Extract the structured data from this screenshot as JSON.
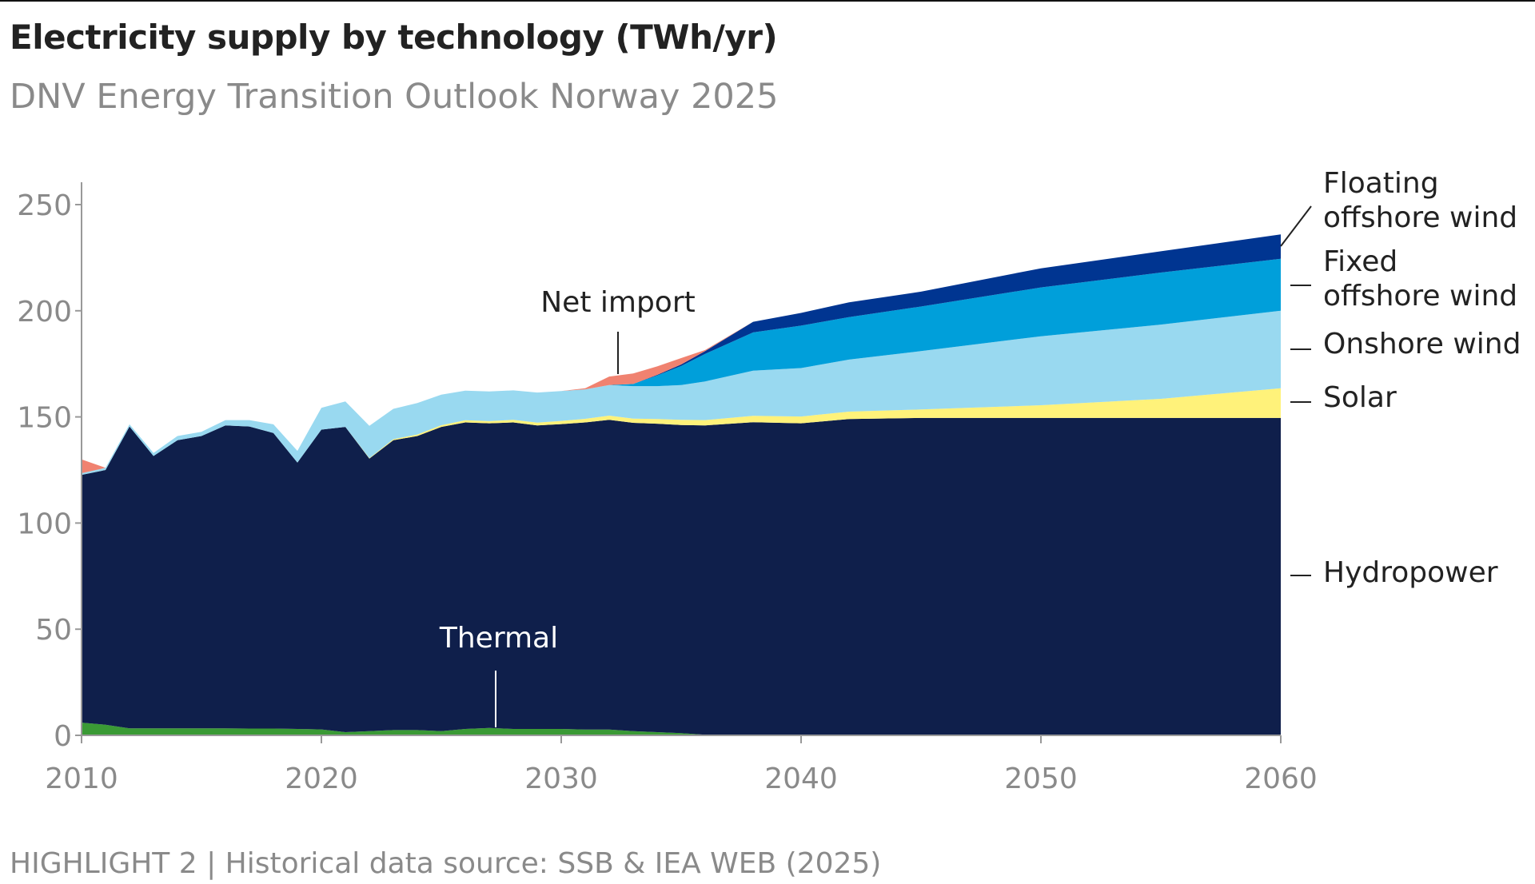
{
  "title": "Electricity supply by technology (TWh/yr)",
  "subtitle": "DNV Energy Transition Outlook Norway 2025",
  "footer": "HIGHLIGHT 2 | Historical data source: SSB & IEA WEB (2025)",
  "chart_data": {
    "type": "area",
    "stacked": true,
    "title": "Electricity supply by technology (TWh/yr)",
    "xlim": [
      2010,
      2060
    ],
    "ylim": [
      0,
      260
    ],
    "xticks": [
      2010,
      2020,
      2030,
      2040,
      2050,
      2060
    ],
    "yticks": [
      0,
      50,
      100,
      150,
      200,
      250
    ],
    "grid": false,
    "legend": "direct labels right",
    "x": [
      2010,
      2011,
      2012,
      2013,
      2014,
      2015,
      2016,
      2017,
      2018,
      2019,
      2020,
      2021,
      2022,
      2023,
      2024,
      2025,
      2026,
      2027,
      2028,
      2029,
      2030,
      2031,
      2032,
      2033,
      2034,
      2035,
      2036,
      2038,
      2040,
      2042,
      2045,
      2050,
      2055,
      2060
    ],
    "series": [
      {
        "name": "Thermal",
        "color": "#3a9a35",
        "label_color": "#ffffff",
        "values": [
          6,
          5,
          3.3,
          3.3,
          3.3,
          3.3,
          3.3,
          3.2,
          3.2,
          3,
          2.8,
          1.5,
          2,
          2.5,
          2.5,
          2,
          3,
          3.5,
          3,
          3,
          3,
          2.7,
          2.7,
          2,
          1.5,
          1,
          0.3,
          0,
          0,
          0,
          0,
          0,
          0,
          0
        ]
      },
      {
        "name": "Hydropower",
        "color": "#0f1f4b",
        "values": [
          116.7,
          120,
          142.2,
          128.3,
          135.7,
          137.7,
          142.7,
          142.3,
          139.2,
          125.5,
          141.2,
          143.8,
          128.4,
          136.5,
          138.5,
          143.3,
          144.4,
          143.5,
          144.4,
          143,
          143.6,
          144.7,
          145.9,
          145.2,
          145.3,
          145.2,
          145.7,
          147.5,
          147,
          149,
          149.5,
          149.5,
          149.5,
          149.5
        ]
      },
      {
        "name": "Solar",
        "color": "#fff27a",
        "values": [
          0,
          0,
          0,
          0,
          0,
          0,
          0,
          0,
          0,
          0,
          0,
          0,
          0.2,
          0.5,
          0.7,
          0.8,
          1,
          1,
          1.2,
          1.3,
          1.5,
          1.7,
          2,
          2,
          2.2,
          2.4,
          2.5,
          3,
          3.2,
          3.5,
          4,
          6,
          9,
          14
        ]
      },
      {
        "name": "Onshore wind",
        "color": "#99d9f0",
        "values": [
          0.8,
          1,
          1,
          1.4,
          2,
          2,
          2.5,
          3,
          4.1,
          5.5,
          10.3,
          12,
          15.2,
          14.3,
          14.8,
          14.4,
          14,
          14,
          13.9,
          14.2,
          14.1,
          13.9,
          14.4,
          15.3,
          15.5,
          16.4,
          18.2,
          21.3,
          22.8,
          24.5,
          27.5,
          32.5,
          35,
          36.5
        ]
      },
      {
        "name": "Fixed offshore wind",
        "color": "#009fda",
        "values": [
          0,
          0,
          0,
          0,
          0,
          0,
          0,
          0,
          0,
          0,
          0,
          0,
          0,
          0,
          0,
          0,
          0,
          0,
          0,
          0,
          0,
          0,
          0,
          1,
          5,
          9,
          13,
          18,
          20,
          20,
          21,
          23,
          24.5,
          24.5
        ]
      },
      {
        "name": "Floating offshore wind",
        "color": "#003591",
        "values": [
          0,
          0,
          0,
          0,
          0,
          0,
          0,
          0,
          0,
          0,
          0,
          0,
          0,
          0,
          0,
          0,
          0,
          0,
          0,
          0,
          0,
          0,
          0,
          0,
          0.3,
          0.7,
          1.3,
          5,
          6,
          7,
          7,
          9,
          10,
          11.5
        ]
      },
      {
        "name": "Net import",
        "color": "#f08270",
        "values": [
          6.5,
          0,
          0,
          0,
          0,
          0,
          0,
          0,
          0,
          0,
          0,
          0,
          0,
          0,
          0,
          0,
          0,
          0,
          0,
          0,
          0,
          0.5,
          4,
          5,
          4,
          3,
          0.5,
          0,
          0,
          0,
          0,
          0,
          0,
          0
        ]
      }
    ],
    "labels": {
      "floating_1": "Floating",
      "floating_2": "offshore wind",
      "fixed_1": "Fixed",
      "fixed_2": "offshore wind",
      "onshore": "Onshore wind",
      "solar": "Solar",
      "hydro": "Hydropower",
      "import": "Net import",
      "thermal": "Thermal"
    }
  }
}
